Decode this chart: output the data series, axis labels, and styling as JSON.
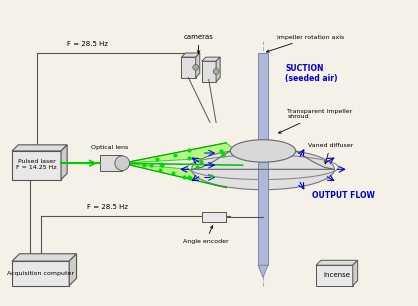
{
  "bg_color": "#f5f0e8",
  "title": "",
  "fig_width": 4.18,
  "fig_height": 3.06,
  "dpi": 100,
  "labels": {
    "impeller_rotation_axis": "impeller rotation axis",
    "cameras": "cameras",
    "suction": "SUCTION\n(seeded air)",
    "transparent_impeller": "Transparent impeller\nshroud",
    "vaned_diffuser": "Vaned diffuser",
    "optical_lens": "Optical lens",
    "pulsed_laser": "Pulsed laser\nF = 14.25 Hz",
    "f285_top": "F = 28.5 Hz",
    "f285_bot": "F = 28.5 Hz",
    "output_flow": "OUTPUT FLOW",
    "angle_encoder": "Angle encoder",
    "acquisition_computer": "Acquisition computer",
    "incense": "incense"
  },
  "colors": {
    "background": "#f5f0e8",
    "black": "#000000",
    "gray": "#888888",
    "light_gray": "#cccccc",
    "dark_gray": "#555555",
    "green_laser": "#00cc00",
    "green_dots": "#00cc00",
    "blue_arrows": "#0000cc",
    "blue_text": "#0000cc",
    "axis_blue": "#8888cc",
    "box_fill": "#eeeeee",
    "box_edge": "#555555"
  }
}
